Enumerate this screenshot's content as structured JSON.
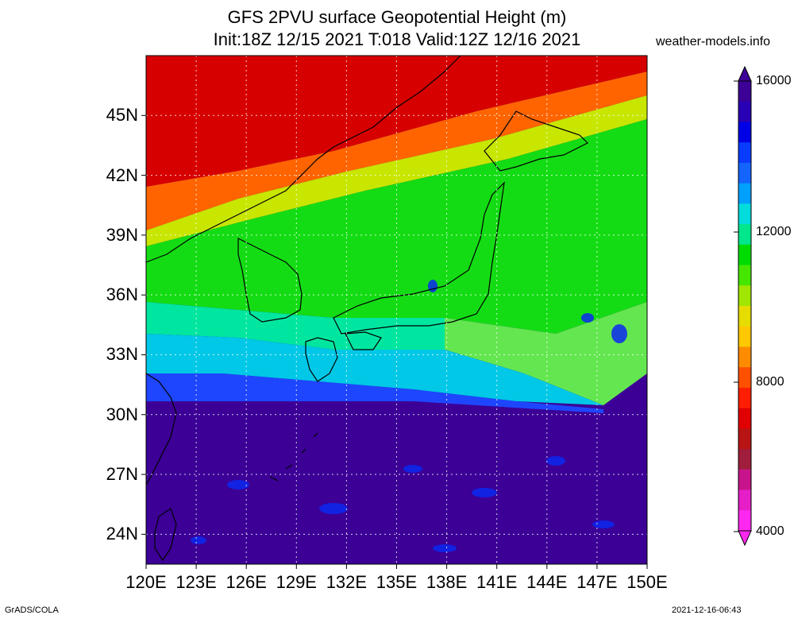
{
  "title": {
    "line1": "GFS 2PVU surface Geopotential Height (m)",
    "line2": "Init:18Z 12/15 2021 T:018 Valid:12Z 12/16 2021"
  },
  "site": "weather-models.info",
  "footer": {
    "left": "GrADS/COLA",
    "right": "2021-12-16-06:43"
  },
  "map": {
    "lat_ticks": [
      "45N",
      "42N",
      "39N",
      "36N",
      "33N",
      "30N",
      "27N",
      "24N"
    ],
    "lon_ticks": [
      "120E",
      "123E",
      "126E",
      "129E",
      "132E",
      "135E",
      "138E",
      "141E",
      "144E",
      "147E",
      "150E"
    ],
    "lon_range": [
      120,
      150
    ],
    "lat_range": [
      22.5,
      48
    ]
  },
  "colorbar": {
    "labels": [
      "16000",
      "12000",
      "8000",
      "4000"
    ],
    "colors": [
      "#3c0096",
      "#2a00b4",
      "#0000e6",
      "#0a3cff",
      "#1464ff",
      "#00a0ff",
      "#00dcdc",
      "#00e68c",
      "#00dc00",
      "#46e600",
      "#a0e600",
      "#e6dc00",
      "#ffc800",
      "#ff8c00",
      "#ff5000",
      "#ff1e00",
      "#e10000",
      "#b91414",
      "#a01e3c",
      "#c8148c",
      "#e61ec8",
      "#ff28f0"
    ]
  }
}
